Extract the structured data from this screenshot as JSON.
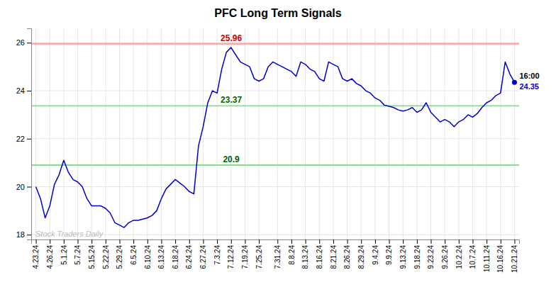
{
  "chart_data": {
    "type": "line",
    "title": "PFC Long Term Signals",
    "color": "#0000cc",
    "grid": true,
    "ylim": [
      17.8,
      26.6
    ],
    "yticks": [
      18,
      20,
      22,
      24,
      26
    ],
    "categories": [
      "4.23.24",
      null,
      null,
      "4.26.24",
      null,
      null,
      "5.1.24",
      null,
      null,
      "5.7.24",
      null,
      null,
      "5.15.24",
      null,
      null,
      "5.22.24",
      null,
      null,
      "5.29.24",
      null,
      null,
      "6.5.24",
      null,
      null,
      "6.10.24",
      null,
      null,
      "6.13.24",
      null,
      null,
      "6.18.24",
      null,
      null,
      "6.24.24",
      null,
      null,
      "6.27.24",
      null,
      null,
      "7.3.24",
      null,
      null,
      "7.12.24",
      null,
      null,
      "7.19.24",
      null,
      null,
      "7.25.24",
      null,
      null,
      null,
      "7.31.24",
      null,
      null,
      "8.8.24",
      null,
      null,
      "8.13.24",
      null,
      null,
      "8.16.24",
      null,
      null,
      "8.21.24",
      null,
      null,
      "8.26.24",
      null,
      null,
      "8.29.24",
      null,
      null,
      "9.4.24",
      null,
      null,
      "9.9.24",
      null,
      null,
      "9.13.24",
      null,
      null,
      "9.18.24",
      null,
      null,
      "9.23.24",
      null,
      null,
      "9.26.24",
      null,
      null,
      "10.2.24",
      null,
      null,
      "10.7.24",
      null,
      null,
      "10.11.24",
      null,
      null,
      "10.16.24",
      null,
      null,
      "10.21.24"
    ],
    "values": [
      20.0,
      19.5,
      18.7,
      19.2,
      20.1,
      20.5,
      21.1,
      20.6,
      20.3,
      20.2,
      20.0,
      19.5,
      19.2,
      19.2,
      19.2,
      19.1,
      18.9,
      18.5,
      18.4,
      18.3,
      18.5,
      18.6,
      18.6,
      18.65,
      18.7,
      18.8,
      19.0,
      19.5,
      19.9,
      20.1,
      20.3,
      20.15,
      20.0,
      19.8,
      19.7,
      21.7,
      22.5,
      23.5,
      24.0,
      23.9,
      24.9,
      25.6,
      25.8,
      25.5,
      25.2,
      25.1,
      25.0,
      24.5,
      24.4,
      24.5,
      25.0,
      25.2,
      25.1,
      25.0,
      24.9,
      24.8,
      24.6,
      25.2,
      25.1,
      24.9,
      24.8,
      24.5,
      24.4,
      25.2,
      25.1,
      25.0,
      24.5,
      24.4,
      24.5,
      24.3,
      24.2,
      24.0,
      23.9,
      23.7,
      23.6,
      23.4,
      23.35,
      23.3,
      23.2,
      23.15,
      23.2,
      23.3,
      23.1,
      23.2,
      23.5,
      23.1,
      22.9,
      22.7,
      22.8,
      22.7,
      22.5,
      22.7,
      22.8,
      23.0,
      22.9,
      23.05,
      23.3,
      23.5,
      23.6,
      23.8,
      23.9,
      25.2,
      24.7,
      24.35
    ],
    "hlines": [
      {
        "y": 25.96,
        "label": "25.96",
        "color": "#ffaaaa",
        "label_color": "#cc0000"
      },
      {
        "y": 23.37,
        "label": "23.37",
        "color": "#88dd88",
        "label_color": "#006600"
      },
      {
        "y": 20.9,
        "label": "20.9",
        "color": "#88dd88",
        "label_color": "#006600"
      }
    ],
    "last_point": {
      "label": "16:00",
      "value": 24.35
    },
    "watermark": {
      "text": "Stock Traders Daily",
      "color": "#bbbbbb"
    }
  }
}
